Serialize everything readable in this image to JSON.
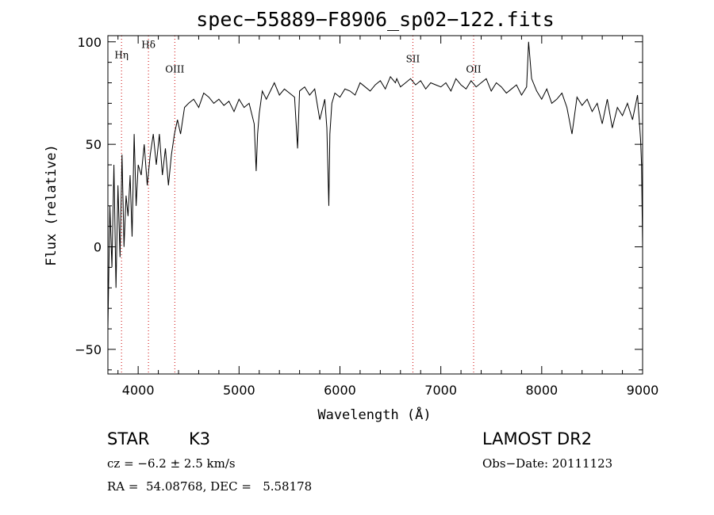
{
  "chart_data": {
    "type": "line",
    "title": "spec−55889−F8906_sp02−122.fits",
    "xlabel": "Wavelength (Å)",
    "ylabel": "Flux (relative)",
    "xlim": [
      3700,
      9000
    ],
    "ylim": [
      -62,
      103
    ],
    "xticks": [
      4000,
      5000,
      6000,
      7000,
      8000,
      9000
    ],
    "xtick_labels": [
      "4000",
      "5000",
      "6000",
      "7000",
      "8000",
      "9000"
    ],
    "yticks": [
      -50,
      0,
      50,
      100
    ],
    "ytick_labels": [
      "−50",
      "0",
      "50",
      "100"
    ],
    "grid": false,
    "line_markers": [
      {
        "label": "Hη",
        "x": 3835,
        "label_y": 92
      },
      {
        "label": "Hδ",
        "x": 4102,
        "label_y": 97
      },
      {
        "label": "OIII",
        "x": 4363,
        "label_y": 85
      },
      {
        "label": "SII",
        "x": 6723,
        "label_y": 90
      },
      {
        "label": "OII",
        "x": 7325,
        "label_y": 85
      }
    ],
    "series": [
      {
        "x": [
          3700,
          3720,
          3740,
          3760,
          3780,
          3800,
          3820,
          3840,
          3860,
          3880,
          3900,
          3920,
          3940,
          3960,
          3980,
          4000,
          4030,
          4060,
          4090,
          4120,
          4150,
          4180,
          4210,
          4240,
          4270,
          4300,
          4330,
          4360,
          4390,
          4420,
          4460,
          4500,
          4550,
          4600,
          4650,
          4700,
          4750,
          4800,
          4850,
          4900,
          4950,
          5000,
          5050,
          5100,
          5150,
          5170,
          5184,
          5200,
          5230,
          5270,
          5300,
          5350,
          5400,
          5450,
          5500,
          5550,
          5580,
          5600,
          5650,
          5700,
          5750,
          5800,
          5850,
          5870,
          5890,
          5900,
          5920,
          5950,
          6000,
          6050,
          6100,
          6150,
          6200,
          6250,
          6300,
          6350,
          6400,
          6450,
          6500,
          6550,
          6563,
          6600,
          6650,
          6700,
          6750,
          6800,
          6850,
          6900,
          6950,
          7000,
          7050,
          7100,
          7150,
          7200,
          7250,
          7300,
          7350,
          7400,
          7450,
          7500,
          7550,
          7600,
          7650,
          7700,
          7750,
          7800,
          7850,
          7870,
          7900,
          7950,
          8000,
          8050,
          8100,
          8150,
          8200,
          8250,
          8300,
          8350,
          8400,
          8450,
          8500,
          8550,
          8600,
          8650,
          8700,
          8750,
          8800,
          8850,
          8900,
          8950,
          8980,
          8990,
          9000
        ],
        "y": [
          -40,
          20,
          -10,
          40,
          -20,
          30,
          -5,
          45,
          0,
          25,
          15,
          35,
          5,
          55,
          20,
          40,
          35,
          50,
          30,
          45,
          55,
          40,
          55,
          35,
          48,
          30,
          45,
          55,
          62,
          55,
          68,
          70,
          72,
          68,
          75,
          73,
          70,
          72,
          69,
          71,
          66,
          72,
          68,
          70,
          60,
          37,
          55,
          65,
          76,
          72,
          75,
          80,
          74,
          77,
          75,
          73,
          48,
          76,
          78,
          74,
          77,
          62,
          72,
          58,
          20,
          55,
          70,
          75,
          73,
          77,
          76,
          74,
          80,
          78,
          76,
          79,
          81,
          77,
          83,
          80,
          82,
          78,
          80,
          82,
          79,
          81,
          77,
          80,
          79,
          78,
          80,
          76,
          82,
          79,
          77,
          81,
          78,
          80,
          82,
          76,
          80,
          78,
          75,
          77,
          79,
          74,
          78,
          100,
          82,
          76,
          72,
          77,
          70,
          72,
          75,
          68,
          55,
          73,
          69,
          72,
          66,
          70,
          60,
          72,
          58,
          68,
          64,
          70,
          62,
          74,
          52,
          40,
          0
        ]
      }
    ]
  },
  "info": {
    "object_class": "STAR",
    "subclass": "K3",
    "survey": "LAMOST DR2",
    "redshift": "cz = −6.2 ± 2.5 km/s",
    "obs_date": "Obs−Date: 20111123",
    "coords": "RA =  54.08768, DEC =   5.58178"
  }
}
